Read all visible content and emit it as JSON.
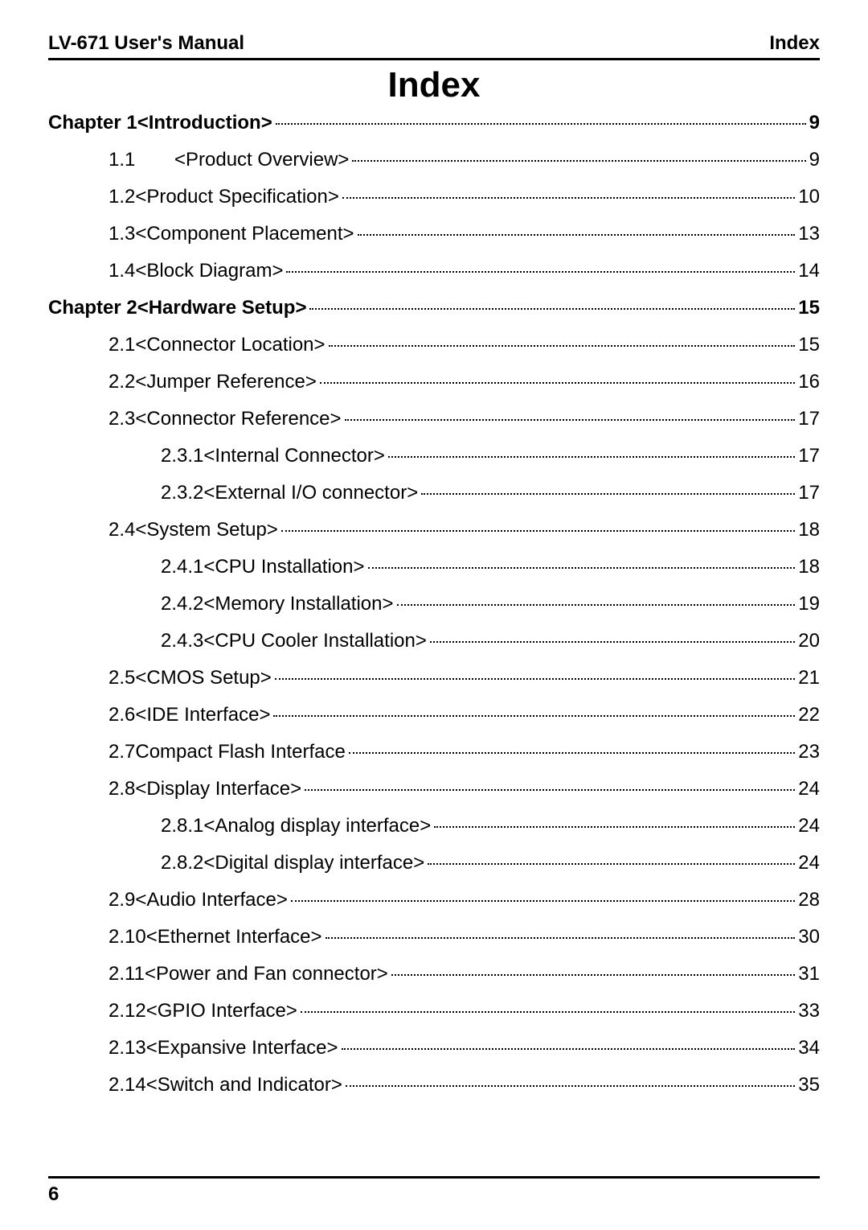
{
  "header": {
    "left": "LV-671 User's Manual",
    "right": "Index"
  },
  "title": "Index",
  "footer": {
    "page_number": "6"
  },
  "entries": [
    {
      "indent": 0,
      "bold": true,
      "num": "Chapter 1 ",
      "label": "<Introduction>",
      "page": "9",
      "fixed_num": false,
      "space_after": true,
      "dot_pad": false
    },
    {
      "indent": 1,
      "bold": false,
      "num": "1.1",
      "label": "<Product Overview>",
      "page": "9",
      "fixed_num": true,
      "space_after": false,
      "dot_pad": false
    },
    {
      "indent": 1,
      "bold": false,
      "num": "1.2 ",
      "label": "<Product Specification>",
      "page": "10",
      "fixed_num": false,
      "space_after": true,
      "dot_pad": true
    },
    {
      "indent": 1,
      "bold": false,
      "num": "1.3 ",
      "label": "<Component Placement>",
      "page": "13",
      "fixed_num": false,
      "space_after": true,
      "dot_pad": true
    },
    {
      "indent": 1,
      "bold": false,
      "num": "1.4 ",
      "label": "<Block Diagram>",
      "page": "14",
      "fixed_num": false,
      "space_after": false,
      "dot_pad": true
    },
    {
      "indent": 0,
      "bold": true,
      "num": "Chapter 2 ",
      "label": "<Hardware Setup>",
      "page": "15",
      "fixed_num": false,
      "space_after": false,
      "dot_pad": true
    },
    {
      "indent": 1,
      "bold": false,
      "num": "2.1 ",
      "label": "<Connector Location>",
      "page": "15",
      "fixed_num": false,
      "space_after": false,
      "dot_pad": true
    },
    {
      "indent": 1,
      "bold": false,
      "num": "2.2 ",
      "label": "<Jumper Reference>",
      "page": "16",
      "fixed_num": false,
      "space_after": true,
      "dot_pad": true
    },
    {
      "indent": 1,
      "bold": false,
      "num": "2.3 ",
      "label": "<Connector Reference>",
      "page": "17",
      "fixed_num": false,
      "space_after": false,
      "dot_pad": true
    },
    {
      "indent": 2,
      "bold": false,
      "num": "2.3.1 ",
      "label": "<Internal Connector>",
      "page": "17",
      "fixed_num": false,
      "space_after": false,
      "dot_pad": true
    },
    {
      "indent": 2,
      "bold": false,
      "num": "2.3.2 ",
      "label": "<External I/O connector>",
      "page": "17",
      "fixed_num": false,
      "space_after": true,
      "dot_pad": true
    },
    {
      "indent": 1,
      "bold": false,
      "num": "2.4 ",
      "label": "<System Setup>",
      "page": "18",
      "fixed_num": false,
      "space_after": false,
      "dot_pad": true
    },
    {
      "indent": 2,
      "bold": false,
      "num": "2.4.1 ",
      "label": "<CPU Installation>",
      "page": "18",
      "fixed_num": false,
      "space_after": false,
      "dot_pad": true
    },
    {
      "indent": 2,
      "bold": false,
      "num": "2.4.2 ",
      "label": "<Memory Installation>",
      "page": "19",
      "fixed_num": false,
      "space_after": true,
      "dot_pad": true
    },
    {
      "indent": 2,
      "bold": false,
      "num": "2.4.3 ",
      "label": "<CPU Cooler Installation>",
      "page": "20",
      "fixed_num": false,
      "space_after": false,
      "dot_pad": true
    },
    {
      "indent": 1,
      "bold": false,
      "num": "2.5 ",
      "label": "<CMOS Setup>",
      "page": "21",
      "fixed_num": false,
      "space_after": false,
      "dot_pad": true
    },
    {
      "indent": 1,
      "bold": false,
      "num": "2.6 ",
      "label": "<IDE Interface>",
      "page": "22",
      "fixed_num": false,
      "space_after": true,
      "dot_pad": true
    },
    {
      "indent": 1,
      "bold": false,
      "num": "2.7 ",
      "label": "Compact Flash Interface",
      "page": "23",
      "fixed_num": false,
      "space_after": true,
      "dot_pad": true
    },
    {
      "indent": 1,
      "bold": false,
      "num": "2.8 ",
      "label": "<Display Interface>",
      "page": "24",
      "fixed_num": false,
      "space_after": true,
      "dot_pad": true
    },
    {
      "indent": 2,
      "bold": false,
      "num": "2.8.1 ",
      "label": "<Analog display interface>",
      "page": "24",
      "fixed_num": false,
      "space_after": false,
      "dot_pad": true
    },
    {
      "indent": 2,
      "bold": false,
      "num": "2.8.2 ",
      "label": "<Digital display interface>",
      "page": "24",
      "fixed_num": false,
      "space_after": true,
      "dot_pad": true
    },
    {
      "indent": 1,
      "bold": false,
      "num": "2.9 ",
      "label": "<Audio Interface>",
      "page": "28",
      "fixed_num": false,
      "space_after": false,
      "dot_pad": true
    },
    {
      "indent": 1,
      "bold": false,
      "num": "2.10 ",
      "label": "<Ethernet Interface>",
      "page": "30",
      "fixed_num": false,
      "space_after": true,
      "dot_pad": true
    },
    {
      "indent": 1,
      "bold": false,
      "num": "2.11 ",
      "label": "<Power and Fan connector>",
      "page": "31",
      "fixed_num": false,
      "space_after": false,
      "dot_pad": true
    },
    {
      "indent": 1,
      "bold": false,
      "num": "2.12 ",
      "label": "<GPIO Interface>",
      "page": "33",
      "fixed_num": false,
      "space_after": true,
      "dot_pad": true
    },
    {
      "indent": 1,
      "bold": false,
      "num": "2.13 ",
      "label": "<Expansive Interface>",
      "page": "34",
      "fixed_num": false,
      "space_after": true,
      "dot_pad": true
    },
    {
      "indent": 1,
      "bold": false,
      "num": "2.14 ",
      "label": "<Switch and Indicator>",
      "page": "35",
      "fixed_num": false,
      "space_after": false,
      "dot_pad": true
    }
  ]
}
